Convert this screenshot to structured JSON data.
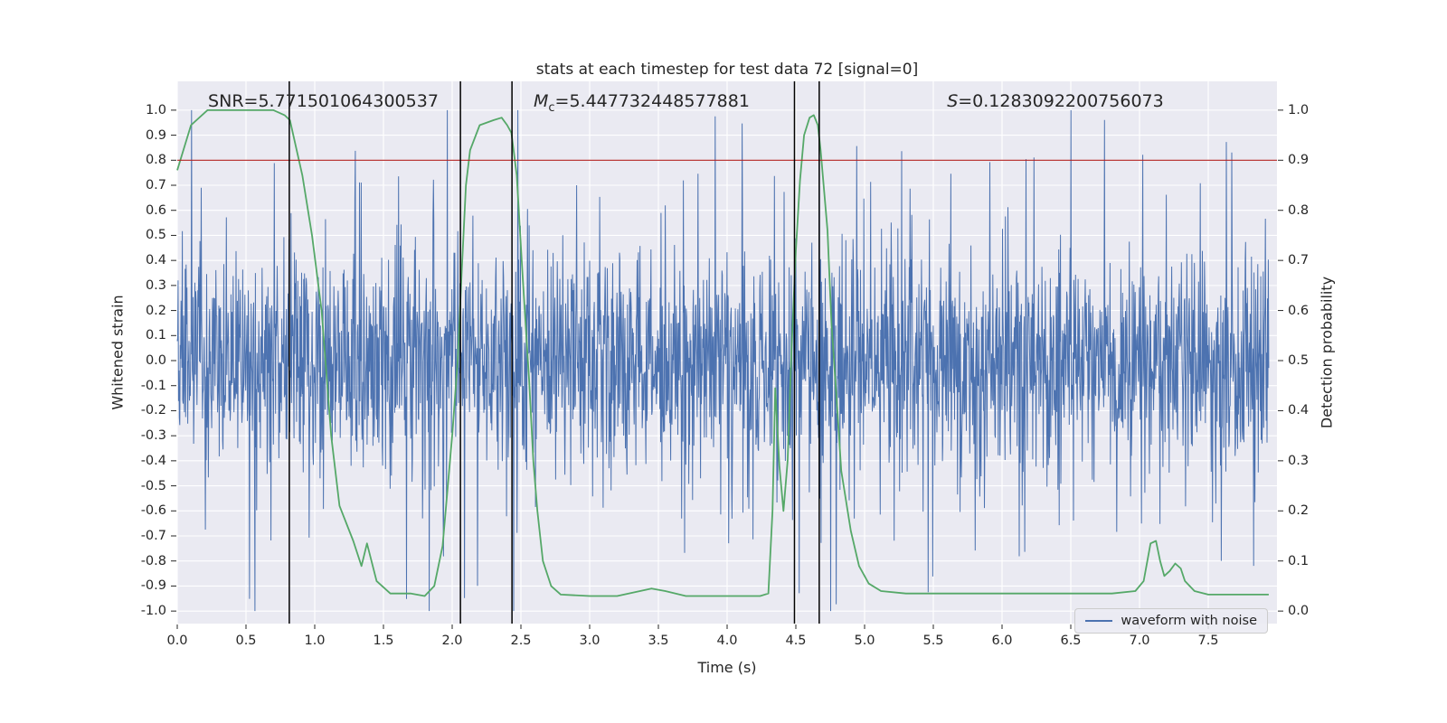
{
  "chart_data": {
    "type": "line",
    "title": "stats at each timestep for test data 72 [signal=0]",
    "xlabel": "Time (s)",
    "ylabel_left": "Whitened strain",
    "ylabel_right": "Detection probability",
    "xlim": [
      0,
      8.0
    ],
    "ylim_left": [
      -1.05,
      1.115
    ],
    "grid": true,
    "plot_bg": "#eaeaf2",
    "grid_color": "#ffffff",
    "text_color": "#262626",
    "xticks": [
      "0.0",
      "0.5",
      "1.0",
      "1.5",
      "2.0",
      "2.5",
      "3.0",
      "3.5",
      "4.0",
      "4.5",
      "5.0",
      "5.5",
      "6.0",
      "6.5",
      "7.0",
      "7.5"
    ],
    "yticks_left": [
      "1.0",
      "0.9",
      "0.8",
      "0.7",
      "0.6",
      "0.5",
      "0.4",
      "0.3",
      "0.2",
      "0.1",
      "0.0",
      "-0.1",
      "-0.2",
      "-0.3",
      "-0.4",
      "-0.5",
      "-0.6",
      "-0.7",
      "-0.8",
      "-0.9",
      "-1.0"
    ],
    "yticks_right": [
      "1.0",
      "0.9",
      "0.8",
      "0.7",
      "0.6",
      "0.5",
      "0.4",
      "0.3",
      "0.2",
      "0.1",
      "0.0"
    ],
    "annotations": [
      {
        "id": "snr",
        "pre": "SNR",
        "sub": "",
        "value": "=5.771501064300537",
        "italic": false,
        "x": 0.028
      },
      {
        "id": "mc",
        "pre": "M",
        "sub": "c",
        "value": "=5.447732448577881",
        "italic": true,
        "x": 0.324
      },
      {
        "id": "s",
        "pre": "S",
        "sub": "",
        "value": "=0.1283092200756073",
        "italic": true,
        "x": 0.7
      }
    ],
    "threshold": {
      "probability": 0.9,
      "color": "#b22222"
    },
    "event_lines": {
      "x": [
        0.815,
        2.06,
        2.435,
        4.49,
        4.67
      ],
      "color": "#000000"
    },
    "noise_series": {
      "name": "waveform with noise",
      "color": "#4c72b0",
      "x_start": 0,
      "x_end": 7.94,
      "samples": 2600,
      "sigma": 0.2,
      "seed": 72,
      "spike_prob": 0.1,
      "spike_min": 0.15,
      "spike_max": 0.62,
      "big_spike_prob": 0.012,
      "big_spike_min": 0.55,
      "big_spike_max": 1.0
    },
    "probability_series": {
      "name": "detection probability",
      "color": "#55a868",
      "points": [
        [
          0.0,
          0.88
        ],
        [
          0.1,
          0.97
        ],
        [
          0.22,
          1.0
        ],
        [
          0.5,
          1.0
        ],
        [
          0.7,
          1.0
        ],
        [
          0.78,
          0.99
        ],
        [
          0.82,
          0.98
        ],
        [
          0.91,
          0.87
        ],
        [
          0.98,
          0.75
        ],
        [
          1.05,
          0.6
        ],
        [
          1.12,
          0.35
        ],
        [
          1.18,
          0.21
        ],
        [
          1.28,
          0.14
        ],
        [
          1.34,
          0.09
        ],
        [
          1.38,
          0.135
        ],
        [
          1.45,
          0.06
        ],
        [
          1.55,
          0.035
        ],
        [
          1.7,
          0.035
        ],
        [
          1.8,
          0.03
        ],
        [
          1.87,
          0.05
        ],
        [
          1.93,
          0.13
        ],
        [
          2.0,
          0.35
        ],
        [
          2.04,
          0.5
        ],
        [
          2.07,
          0.68
        ],
        [
          2.1,
          0.85
        ],
        [
          2.13,
          0.92
        ],
        [
          2.2,
          0.97
        ],
        [
          2.3,
          0.98
        ],
        [
          2.36,
          0.985
        ],
        [
          2.4,
          0.97
        ],
        [
          2.43,
          0.955
        ],
        [
          2.47,
          0.87
        ],
        [
          2.51,
          0.68
        ],
        [
          2.56,
          0.46
        ],
        [
          2.59,
          0.3
        ],
        [
          2.62,
          0.2
        ],
        [
          2.66,
          0.1
        ],
        [
          2.72,
          0.05
        ],
        [
          2.79,
          0.033
        ],
        [
          3.0,
          0.03
        ],
        [
          3.2,
          0.03
        ],
        [
          3.45,
          0.045
        ],
        [
          3.55,
          0.04
        ],
        [
          3.7,
          0.03
        ],
        [
          3.9,
          0.03
        ],
        [
          4.1,
          0.03
        ],
        [
          4.24,
          0.03
        ],
        [
          4.3,
          0.035
        ],
        [
          4.33,
          0.2
        ],
        [
          4.35,
          0.445
        ],
        [
          4.38,
          0.29
        ],
        [
          4.41,
          0.2
        ],
        [
          4.44,
          0.3
        ],
        [
          4.47,
          0.53
        ],
        [
          4.5,
          0.72
        ],
        [
          4.53,
          0.86
        ],
        [
          4.56,
          0.95
        ],
        [
          4.6,
          0.985
        ],
        [
          4.63,
          0.99
        ],
        [
          4.66,
          0.97
        ],
        [
          4.68,
          0.92
        ],
        [
          4.73,
          0.76
        ],
        [
          4.76,
          0.57
        ],
        [
          4.8,
          0.41
        ],
        [
          4.83,
          0.28
        ],
        [
          4.9,
          0.16
        ],
        [
          4.96,
          0.09
        ],
        [
          5.03,
          0.055
        ],
        [
          5.12,
          0.04
        ],
        [
          5.3,
          0.035
        ],
        [
          5.6,
          0.035
        ],
        [
          6.0,
          0.035
        ],
        [
          6.4,
          0.035
        ],
        [
          6.8,
          0.035
        ],
        [
          6.97,
          0.04
        ],
        [
          7.03,
          0.06
        ],
        [
          7.08,
          0.135
        ],
        [
          7.12,
          0.14
        ],
        [
          7.15,
          0.1
        ],
        [
          7.18,
          0.07
        ],
        [
          7.22,
          0.08
        ],
        [
          7.26,
          0.095
        ],
        [
          7.3,
          0.085
        ],
        [
          7.33,
          0.06
        ],
        [
          7.4,
          0.04
        ],
        [
          7.5,
          0.033
        ],
        [
          7.7,
          0.033
        ],
        [
          7.94,
          0.033
        ]
      ]
    },
    "legend": {
      "label": "waveform with noise",
      "position": "lower right"
    }
  }
}
